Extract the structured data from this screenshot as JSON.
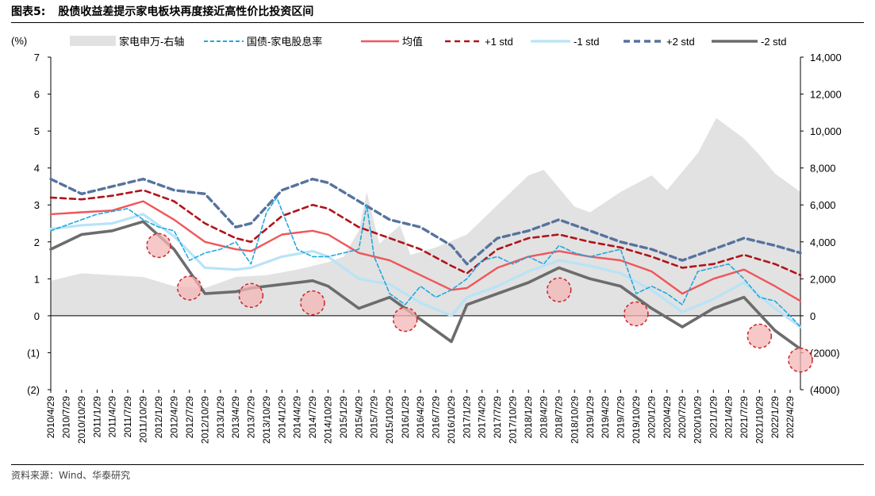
{
  "header": {
    "figure_label": "图表5:",
    "title": "股债收益差提示家电板块再度接近高性价比投资区间"
  },
  "footer": {
    "source": "资料来源：Wind、华泰研究"
  },
  "colors": {
    "area": "#e2e2e2",
    "yield": "#21a8e0",
    "mean": "#f0565a",
    "plus1": "#b0141b",
    "minus1": "#b9e3f7",
    "plus2": "#56739e",
    "minus2": "#6c6c6c",
    "circle_fill": "#f4b6b6",
    "circle_stroke": "#c8242a"
  },
  "chart_data": {
    "type": "line",
    "title": "",
    "left_axis": {
      "label": "(%)",
      "ylim": [
        -2,
        7
      ],
      "ticks": [
        -2,
        -1,
        0,
        1,
        2,
        3,
        4,
        5,
        6,
        7
      ],
      "tick_labels": [
        "(2)",
        "(1)",
        "0",
        "1",
        "2",
        "3",
        "4",
        "5",
        "6",
        "7"
      ]
    },
    "right_axis": {
      "label": "",
      "ylim": [
        -4000,
        14000
      ],
      "ticks": [
        -4000,
        -2000,
        0,
        2000,
        4000,
        6000,
        8000,
        10000,
        12000,
        14000
      ],
      "tick_labels": [
        "(4000)",
        "(2000)",
        "0",
        "2,000",
        "4,000",
        "6,000",
        "8,000",
        "10,000",
        "12,000",
        "14,000"
      ]
    },
    "x_tick_labels": [
      "2010/4/29",
      "2010/7/29",
      "2010/10/29",
      "2011/1/29",
      "2011/4/29",
      "2011/7/29",
      "2011/10/29",
      "2012/1/29",
      "2012/4/29",
      "2012/7/29",
      "2012/10/29",
      "2013/1/29",
      "2013/4/29",
      "2013/7/29",
      "2013/10/29",
      "2014/1/29",
      "2014/4/29",
      "2014/7/29",
      "2014/10/29",
      "2015/1/29",
      "2015/4/29",
      "2015/7/29",
      "2015/10/29",
      "2016/1/29",
      "2016/4/29",
      "2016/7/29",
      "2016/10/29",
      "2017/1/29",
      "2017/4/29",
      "2017/7/29",
      "2017/10/29",
      "2018/1/29",
      "2018/4/29",
      "2018/7/29",
      "2018/10/29",
      "2019/1/29",
      "2019/4/29",
      "2019/7/29",
      "2019/10/29",
      "2020/1/29",
      "2020/4/29",
      "2020/7/29",
      "2020/10/29",
      "2021/1/29",
      "2021/4/29",
      "2021/7/29",
      "2021/10/29",
      "2022/1/29",
      "2022/4/29"
    ],
    "x_start": "2010/4/29",
    "x_end": "2022/6/29",
    "legend_position": "top",
    "series": [
      {
        "name": "家电申万-右轴",
        "axis": "right",
        "style": "area",
        "x": [
          "2010/4/29",
          "2010/10/29",
          "2011/4/29",
          "2011/10/29",
          "2012/4/29",
          "2012/10/29",
          "2013/4/29",
          "2013/10/29",
          "2014/4/29",
          "2014/10/29",
          "2015/1/29",
          "2015/4/29",
          "2015/6/15",
          "2015/8/29",
          "2015/12/29",
          "2016/2/29",
          "2016/7/29",
          "2017/1/29",
          "2017/7/29",
          "2018/1/29",
          "2018/4/29",
          "2018/10/29",
          "2019/1/29",
          "2019/7/29",
          "2020/1/29",
          "2020/4/29",
          "2020/10/29",
          "2021/2/15",
          "2021/7/29",
          "2021/10/29",
          "2022/1/29",
          "2022/6/29"
        ],
        "values": [
          1900,
          2300,
          2200,
          2100,
          1600,
          1500,
          2100,
          2200,
          2500,
          2900,
          3200,
          4600,
          6700,
          3900,
          4900,
          3300,
          3700,
          4400,
          6000,
          7600,
          7900,
          5900,
          5600,
          6700,
          7600,
          6800,
          8800,
          10700,
          9600,
          8700,
          7700,
          6700
        ]
      },
      {
        "name": "国债-家电股息率",
        "axis": "left",
        "style": "dashed",
        "x": [
          "2010/4/29",
          "2010/10/29",
          "2011/1/29",
          "2011/7/29",
          "2011/10/29",
          "2012/1/29",
          "2012/4/29",
          "2012/7/29",
          "2012/10/29",
          "2013/1/29",
          "2013/4/29",
          "2013/7/29",
          "2013/10/29",
          "2013/12/29",
          "2014/4/29",
          "2014/7/29",
          "2014/10/29",
          "2015/1/29",
          "2015/4/29",
          "2015/6/15",
          "2015/7/29",
          "2015/10/29",
          "2016/1/29",
          "2016/4/29",
          "2016/7/29",
          "2016/10/29",
          "2017/1/29",
          "2017/4/29",
          "2017/7/29",
          "2017/10/29",
          "2018/1/29",
          "2018/4/29",
          "2018/7/29",
          "2018/10/29",
          "2019/1/29",
          "2019/4/29",
          "2019/7/29",
          "2019/10/29",
          "2020/1/29",
          "2020/4/29",
          "2020/7/29",
          "2020/10/29",
          "2021/1/29",
          "2021/4/29",
          "2021/7/29",
          "2021/10/29",
          "2022/1/29",
          "2022/4/29",
          "2022/6/29"
        ],
        "values": [
          2.3,
          2.6,
          2.75,
          2.9,
          2.6,
          2.4,
          2.3,
          1.5,
          1.7,
          1.8,
          2.0,
          1.4,
          2.8,
          3.2,
          1.8,
          1.6,
          1.6,
          1.7,
          1.8,
          3.0,
          1.6,
          0.6,
          0.3,
          0.8,
          0.5,
          0.7,
          1.0,
          1.5,
          1.6,
          1.4,
          1.6,
          1.4,
          1.9,
          1.7,
          1.6,
          1.7,
          1.8,
          0.6,
          0.8,
          0.6,
          0.3,
          1.2,
          1.3,
          1.4,
          1.0,
          0.5,
          0.4,
          0.0,
          -0.3
        ]
      },
      {
        "name": "均值",
        "axis": "left",
        "style": "solid",
        "x": [
          "2010/4/29",
          "2010/10/29",
          "2011/4/29",
          "2011/10/29",
          "2012/4/29",
          "2012/10/29",
          "2013/4/29",
          "2013/7/29",
          "2014/1/29",
          "2014/7/29",
          "2014/10/29",
          "2015/4/29",
          "2015/10/29",
          "2016/4/29",
          "2016/10/29",
          "2017/1/29",
          "2017/7/29",
          "2018/1/29",
          "2018/7/29",
          "2019/1/29",
          "2019/7/29",
          "2020/1/29",
          "2020/7/29",
          "2021/1/29",
          "2021/7/29",
          "2022/1/29",
          "2022/6/29"
        ],
        "values": [
          2.75,
          2.8,
          2.85,
          3.1,
          2.6,
          2.0,
          1.8,
          1.75,
          2.2,
          2.3,
          2.2,
          1.7,
          1.5,
          1.1,
          0.7,
          0.75,
          1.3,
          1.6,
          1.75,
          1.6,
          1.5,
          1.2,
          0.6,
          1.0,
          1.25,
          0.8,
          0.4
        ]
      },
      {
        "name": "+1 std",
        "axis": "left",
        "style": "dashed",
        "x": [
          "2010/4/29",
          "2010/10/29",
          "2011/4/29",
          "2011/10/29",
          "2012/4/29",
          "2012/10/29",
          "2013/4/29",
          "2013/7/29",
          "2014/1/29",
          "2014/7/29",
          "2014/10/29",
          "2015/4/29",
          "2015/10/29",
          "2016/4/29",
          "2016/10/29",
          "2017/1/29",
          "2017/7/29",
          "2018/1/29",
          "2018/7/29",
          "2019/1/29",
          "2019/7/29",
          "2020/1/29",
          "2020/7/29",
          "2021/1/29",
          "2021/7/29",
          "2022/1/29",
          "2022/6/29"
        ],
        "values": [
          3.2,
          3.15,
          3.25,
          3.4,
          3.1,
          2.5,
          2.1,
          2.0,
          2.7,
          3.0,
          2.9,
          2.4,
          2.1,
          1.8,
          1.35,
          1.15,
          1.8,
          2.1,
          2.2,
          2.0,
          1.85,
          1.6,
          1.3,
          1.4,
          1.65,
          1.4,
          1.1
        ]
      },
      {
        "name": "-1 std",
        "axis": "left",
        "style": "solid",
        "x": [
          "2010/4/29",
          "2010/10/29",
          "2011/4/29",
          "2011/10/29",
          "2012/4/29",
          "2012/10/29",
          "2013/4/29",
          "2013/7/29",
          "2014/1/29",
          "2014/7/29",
          "2014/10/29",
          "2015/4/29",
          "2015/10/29",
          "2016/4/29",
          "2016/10/29",
          "2017/1/29",
          "2017/7/29",
          "2018/1/29",
          "2018/7/29",
          "2019/1/29",
          "2019/7/29",
          "2020/1/29",
          "2020/7/29",
          "2021/1/29",
          "2021/7/29",
          "2022/1/29",
          "2022/6/29"
        ],
        "values": [
          2.35,
          2.45,
          2.5,
          2.75,
          2.15,
          1.3,
          1.25,
          1.3,
          1.6,
          1.75,
          1.6,
          1.0,
          0.85,
          0.35,
          0.0,
          0.5,
          0.8,
          1.2,
          1.5,
          1.35,
          1.15,
          0.7,
          0.1,
          0.45,
          0.9,
          0.2,
          -0.3
        ]
      },
      {
        "name": "+2 std",
        "axis": "left",
        "style": "dashed",
        "x": [
          "2010/4/29",
          "2010/10/29",
          "2011/4/29",
          "2011/10/29",
          "2012/4/29",
          "2012/10/29",
          "2013/4/29",
          "2013/7/29",
          "2014/1/29",
          "2014/7/29",
          "2014/10/29",
          "2015/4/29",
          "2015/10/29",
          "2016/4/29",
          "2016/10/29",
          "2017/1/29",
          "2017/7/29",
          "2018/1/29",
          "2018/7/29",
          "2019/1/29",
          "2019/7/29",
          "2020/1/29",
          "2020/7/29",
          "2021/1/29",
          "2021/7/29",
          "2022/1/29",
          "2022/6/29"
        ],
        "values": [
          3.7,
          3.3,
          3.5,
          3.7,
          3.4,
          3.3,
          2.4,
          2.5,
          3.4,
          3.7,
          3.6,
          3.1,
          2.6,
          2.4,
          1.9,
          1.4,
          2.1,
          2.3,
          2.6,
          2.3,
          2.0,
          1.8,
          1.5,
          1.8,
          2.1,
          1.9,
          1.7
        ]
      },
      {
        "name": "-2 std",
        "axis": "left",
        "style": "solid",
        "x": [
          "2010/4/29",
          "2010/10/29",
          "2011/4/29",
          "2011/10/29",
          "2012/4/29",
          "2012/10/29",
          "2013/4/29",
          "2013/7/29",
          "2014/1/29",
          "2014/7/29",
          "2014/10/29",
          "2015/4/29",
          "2015/10/29",
          "2016/4/29",
          "2016/10/29",
          "2017/1/29",
          "2017/7/29",
          "2018/1/29",
          "2018/7/29",
          "2019/1/29",
          "2019/7/29",
          "2020/1/29",
          "2020/7/29",
          "2021/1/29",
          "2021/7/29",
          "2022/1/29",
          "2022/6/29"
        ],
        "values": [
          1.8,
          2.2,
          2.3,
          2.55,
          1.8,
          0.6,
          0.65,
          0.75,
          0.85,
          0.95,
          0.8,
          0.2,
          0.5,
          -0.1,
          -0.7,
          0.3,
          0.6,
          0.9,
          1.3,
          1.0,
          0.8,
          0.2,
          -0.3,
          0.2,
          0.5,
          -0.4,
          -0.9
        ]
      }
    ],
    "highlight_circles": [
      {
        "x": "2012/1/29",
        "y": 1.9
      },
      {
        "x": "2012/7/29",
        "y": 0.75
      },
      {
        "x": "2013/7/29",
        "y": 0.55
      },
      {
        "x": "2014/7/29",
        "y": 0.35
      },
      {
        "x": "2016/1/29",
        "y": -0.1
      },
      {
        "x": "2018/7/29",
        "y": 0.7
      },
      {
        "x": "2019/10/29",
        "y": 0.05
      },
      {
        "x": "2021/10/29",
        "y": -0.55
      },
      {
        "x": "2022/6/29",
        "y": -1.2
      }
    ]
  }
}
